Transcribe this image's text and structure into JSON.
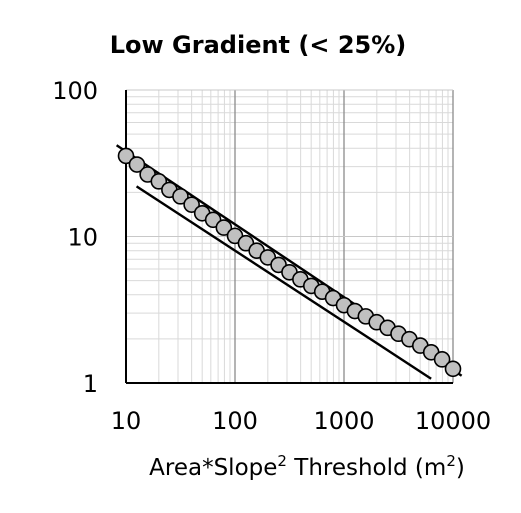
{
  "chart_data": {
    "type": "scatter",
    "title": "Low Gradient (< 25%)",
    "xlabel": {
      "parts": [
        {
          "text": "Area*Slope",
          "sup": false
        },
        {
          "text": "2",
          "sup": true
        },
        {
          "text": " Threshold (m",
          "sup": false
        },
        {
          "text": "2",
          "sup": true
        },
        {
          "text": ")",
          "sup": false
        }
      ]
    },
    "ylabel": "",
    "x_scale": "log",
    "y_scale": "log",
    "xlim": [
      10,
      10000
    ],
    "ylim": [
      1,
      100
    ],
    "x_ticks": [
      {
        "value": 10,
        "label": "10"
      },
      {
        "value": 100,
        "label": "100"
      },
      {
        "value": 1000,
        "label": "1000"
      },
      {
        "value": 10000,
        "label": "10000"
      }
    ],
    "y_ticks": [
      {
        "value": 1,
        "label": "1"
      },
      {
        "value": 10,
        "label": "10"
      },
      {
        "value": 100,
        "label": "100"
      }
    ],
    "grid": true,
    "legend": "none",
    "marker_fill": "#c0c0c0",
    "marker_stroke": "#000000",
    "line_color": "#000000",
    "series": [
      {
        "kind": "points",
        "points": [
          {
            "x": 10,
            "y": 35.5
          },
          {
            "x": 12.6,
            "y": 31.0
          },
          {
            "x": 15.8,
            "y": 26.5
          },
          {
            "x": 20,
            "y": 23.8
          },
          {
            "x": 25,
            "y": 20.8
          },
          {
            "x": 31.6,
            "y": 18.8
          },
          {
            "x": 40,
            "y": 16.5
          },
          {
            "x": 50,
            "y": 14.4
          },
          {
            "x": 63,
            "y": 13.0
          },
          {
            "x": 79,
            "y": 11.5
          },
          {
            "x": 100,
            "y": 10.1
          },
          {
            "x": 126,
            "y": 9.0
          },
          {
            "x": 158,
            "y": 8.0
          },
          {
            "x": 200,
            "y": 7.2
          },
          {
            "x": 251,
            "y": 6.4
          },
          {
            "x": 316,
            "y": 5.7
          },
          {
            "x": 398,
            "y": 5.1
          },
          {
            "x": 501,
            "y": 4.6
          },
          {
            "x": 631,
            "y": 4.2
          },
          {
            "x": 794,
            "y": 3.8
          },
          {
            "x": 1000,
            "y": 3.4
          },
          {
            "x": 1259,
            "y": 3.1
          },
          {
            "x": 1585,
            "y": 2.85
          },
          {
            "x": 1995,
            "y": 2.6
          },
          {
            "x": 2512,
            "y": 2.38
          },
          {
            "x": 3162,
            "y": 2.17
          },
          {
            "x": 3981,
            "y": 1.99
          },
          {
            "x": 5012,
            "y": 1.8
          },
          {
            "x": 6310,
            "y": 1.62
          },
          {
            "x": 7943,
            "y": 1.45
          },
          {
            "x": 10000,
            "y": 1.25
          }
        ]
      },
      {
        "kind": "line",
        "points": [
          {
            "x": 8.2,
            "y": 42
          },
          {
            "x": 12000,
            "y": 1.12
          }
        ]
      },
      {
        "kind": "line",
        "points": [
          {
            "x": 12.5,
            "y": 22
          },
          {
            "x": 6300,
            "y": 1.07
          }
        ]
      }
    ]
  }
}
